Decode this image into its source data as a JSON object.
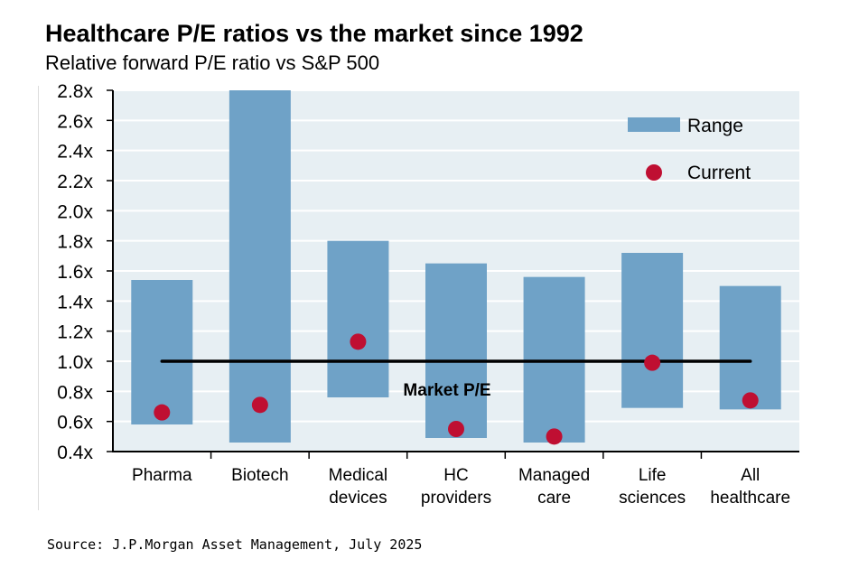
{
  "chart_data": {
    "type": "bar",
    "title": "Healthcare P/E ratios vs the market since 1992",
    "subtitle": "Relative forward P/E ratio vs S&P 500",
    "source": "Source: J.P.Morgan Asset Management, July 2025",
    "categories": [
      [
        "Pharma"
      ],
      [
        "Biotech"
      ],
      [
        "Medical",
        "devices"
      ],
      [
        "HC",
        "providers"
      ],
      [
        "Managed",
        "care"
      ],
      [
        "Life",
        "sciences"
      ],
      [
        "All",
        "healthcare"
      ]
    ],
    "series": [
      {
        "name": "Range",
        "low": [
          0.58,
          0.46,
          0.76,
          0.49,
          0.46,
          0.69,
          0.68
        ],
        "high": [
          1.54,
          2.8,
          1.8,
          1.65,
          1.56,
          1.72,
          1.5
        ]
      },
      {
        "name": "Current",
        "values": [
          0.66,
          0.71,
          1.13,
          0.55,
          0.5,
          0.99,
          0.74
        ]
      }
    ],
    "reference_line": {
      "label": "Market P/E",
      "value": 1.0
    },
    "yticks": [
      "0.4x",
      "0.6x",
      "0.8x",
      "1.0x",
      "1.2x",
      "1.4x",
      "1.6x",
      "1.8x",
      "2.0x",
      "2.2x",
      "2.4x",
      "2.6x",
      "2.8x"
    ],
    "ylim": [
      0.4,
      2.8
    ],
    "legend_position": "top-right",
    "colors": {
      "range": "#6fa2c7",
      "current": "#bf0f32",
      "plot_bg": "#e7eff3"
    }
  }
}
